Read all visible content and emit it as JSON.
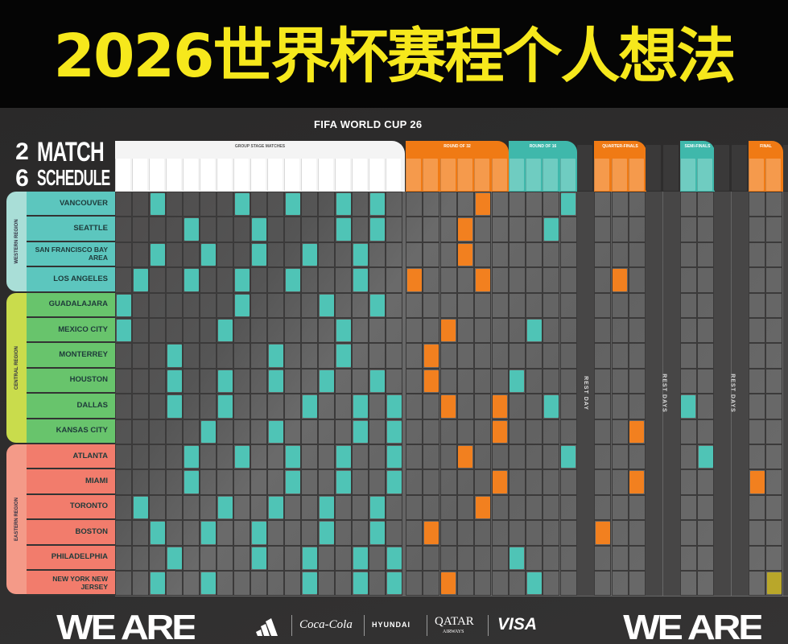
{
  "title": "2026世界杯赛程个人想法",
  "brand": "FIFA WORLD CUP 26",
  "logo": {
    "num": "26",
    "line1": "MATCH",
    "line2": "SCHEDULE",
    "fifa": "FIFA"
  },
  "stages": {
    "group": "GROUP STAGE MATCHES",
    "r32": "ROUND OF 32",
    "r16": "ROUND OF 16",
    "qf": "QUARTER-FINALS",
    "sf": "SEMI-FINALS",
    "final": "FINAL"
  },
  "rest_labels": [
    "REST DAY",
    "REST DAYS",
    "REST DAYS"
  ],
  "colors": {
    "group_match": "#4fc4b6",
    "knockout_orange": "#f2801f",
    "knockout_teal": "#4fc4b6",
    "final_match": "#b9a72a",
    "western": "#5cc6be",
    "central": "#68c46c",
    "eastern": "#f27c6c"
  },
  "regions": [
    {
      "name": "WESTERN REGION",
      "color": "#a9ded7"
    },
    {
      "name": "CENTRAL REGION",
      "color": "#c9dc4c"
    },
    {
      "name": "EASTERN REGION",
      "color": "#f49a88"
    }
  ],
  "rows": [
    {
      "city": "VANCOUVER",
      "region": 0,
      "group": [
        2,
        7,
        10,
        13,
        15
      ],
      "r32": [
        4
      ],
      "r16": [
        3
      ],
      "qf": [],
      "sf": [],
      "final": []
    },
    {
      "city": "SEATTLE",
      "region": 0,
      "group": [
        4,
        8,
        13,
        15
      ],
      "r32": [
        3
      ],
      "r16": [
        2
      ],
      "qf": [],
      "sf": [],
      "final": []
    },
    {
      "city": "SAN FRANCISCO BAY AREA",
      "region": 0,
      "group": [
        2,
        5,
        8,
        11,
        14
      ],
      "r32": [
        3
      ],
      "r16": [],
      "qf": [],
      "sf": [],
      "final": []
    },
    {
      "city": "LOS ANGELES",
      "region": 0,
      "group": [
        1,
        4,
        7,
        10,
        14
      ],
      "r32": [
        0,
        4
      ],
      "r16": [],
      "qf": [
        1
      ],
      "sf": [],
      "final": []
    },
    {
      "city": "GUADALAJARA",
      "region": 1,
      "group": [
        0,
        7,
        12,
        15
      ],
      "r32": [],
      "r16": [],
      "qf": [],
      "sf": [],
      "final": []
    },
    {
      "city": "MEXICO CITY",
      "region": 1,
      "group": [
        0,
        6,
        13
      ],
      "r32": [
        2
      ],
      "r16": [
        1
      ],
      "qf": [],
      "sf": [],
      "final": []
    },
    {
      "city": "MONTERREY",
      "region": 1,
      "group": [
        3,
        9,
        13
      ],
      "r32": [
        1
      ],
      "r16": [],
      "qf": [],
      "sf": [],
      "final": []
    },
    {
      "city": "HOUSTON",
      "region": 1,
      "group": [
        3,
        6,
        9,
        12,
        15
      ],
      "r32": [
        1
      ],
      "r16": [
        0
      ],
      "qf": [],
      "sf": [],
      "final": []
    },
    {
      "city": "DALLAS",
      "region": 1,
      "group": [
        3,
        6,
        11,
        14,
        16
      ],
      "r32": [
        2,
        5
      ],
      "r16": [
        2
      ],
      "qf": [],
      "sf": [
        0
      ],
      "final": []
    },
    {
      "city": "KANSAS CITY",
      "region": 1,
      "group": [
        5,
        9,
        14,
        16
      ],
      "r32": [
        5
      ],
      "r16": [],
      "qf": [
        2
      ],
      "sf": [],
      "final": []
    },
    {
      "city": "ATLANTA",
      "region": 2,
      "group": [
        4,
        7,
        10,
        13,
        16
      ],
      "r32": [
        3
      ],
      "r16": [
        3
      ],
      "qf": [],
      "sf": [
        1
      ],
      "final": []
    },
    {
      "city": "MIAMI",
      "region": 2,
      "group": [
        4,
        10,
        13,
        16
      ],
      "r32": [
        5
      ],
      "r16": [],
      "qf": [
        2
      ],
      "sf": [],
      "final": [
        0
      ]
    },
    {
      "city": "TORONTO",
      "region": 2,
      "group": [
        1,
        6,
        9,
        12,
        15
      ],
      "r32": [
        4
      ],
      "r16": [],
      "qf": [],
      "sf": [],
      "final": []
    },
    {
      "city": "BOSTON",
      "region": 2,
      "group": [
        2,
        5,
        8,
        12,
        15
      ],
      "r32": [
        1
      ],
      "r16": [],
      "qf": [
        0
      ],
      "sf": [],
      "final": []
    },
    {
      "city": "PHILADELPHIA",
      "region": 2,
      "group": [
        3,
        8,
        11,
        14,
        16
      ],
      "r32": [],
      "r16": [
        0
      ],
      "qf": [],
      "sf": [],
      "final": []
    },
    {
      "city": "NEW YORK NEW JERSEY",
      "region": 2,
      "group": [
        2,
        5,
        11,
        14,
        16
      ],
      "r32": [
        2
      ],
      "r16": [
        1
      ],
      "qf": [],
      "sf": [],
      "final": [
        1
      ]
    }
  ],
  "footer": {
    "we_are": "WE ARE",
    "sponsors": [
      "Coca-Cola",
      "HYUNDAI",
      "QATAR",
      "AIRWAYS",
      "VISA"
    ]
  }
}
